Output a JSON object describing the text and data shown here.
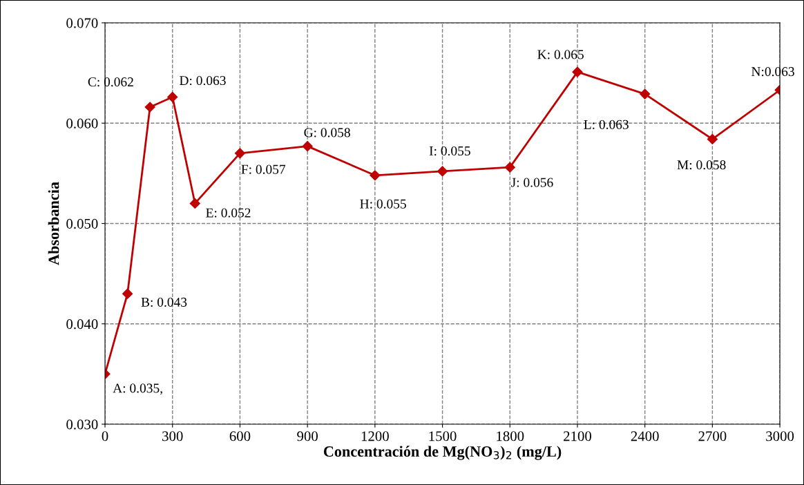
{
  "chart_data": {
    "type": "line",
    "xlabel": "Concentración de Mg(NO$_{3}$)$_{2}$ (mg/L)",
    "ylabel": "Absorbancia",
    "x": [
      0,
      100,
      200,
      300,
      400,
      600,
      900,
      1200,
      1500,
      1800,
      2100,
      2400,
      2700,
      3000
    ],
    "series": [
      {
        "color": "#c00000",
        "values": [
          0.035,
          0.043,
          0.0616,
          0.0626,
          0.052,
          0.057,
          0.0577,
          0.0548,
          0.0552,
          0.0556,
          0.0651,
          0.0629,
          0.0584,
          0.0633
        ],
        "value_labels": [
          "A: 0.035,",
          "B: 0.043",
          "C: 0.062",
          "D: 0.063",
          "E: 0.052",
          "F: 0.057",
          "G: 0.058",
          "H: 0.055",
          "I: 0.055",
          "J: 0.056",
          "K: 0.065",
          "L: 0.063",
          "M: 0.058",
          "N:0.063"
        ]
      }
    ],
    "xlim": [
      0,
      3000
    ],
    "xticks": [
      0,
      300,
      600,
      900,
      1200,
      1500,
      1800,
      2100,
      2400,
      2700,
      3000
    ],
    "ylim": [
      0.03,
      0.07
    ],
    "yticks": [
      {
        "value": 0.03,
        "label": "0.030"
      },
      {
        "value": 0.04,
        "label": "0.040"
      },
      {
        "value": 0.05,
        "label": "0.050"
      },
      {
        "value": 0.06,
        "label": "0.060"
      },
      {
        "value": 0.07,
        "label": "0.070"
      }
    ],
    "grid": true,
    "marker": "diamond",
    "line_style": "solid",
    "legend": false
  }
}
